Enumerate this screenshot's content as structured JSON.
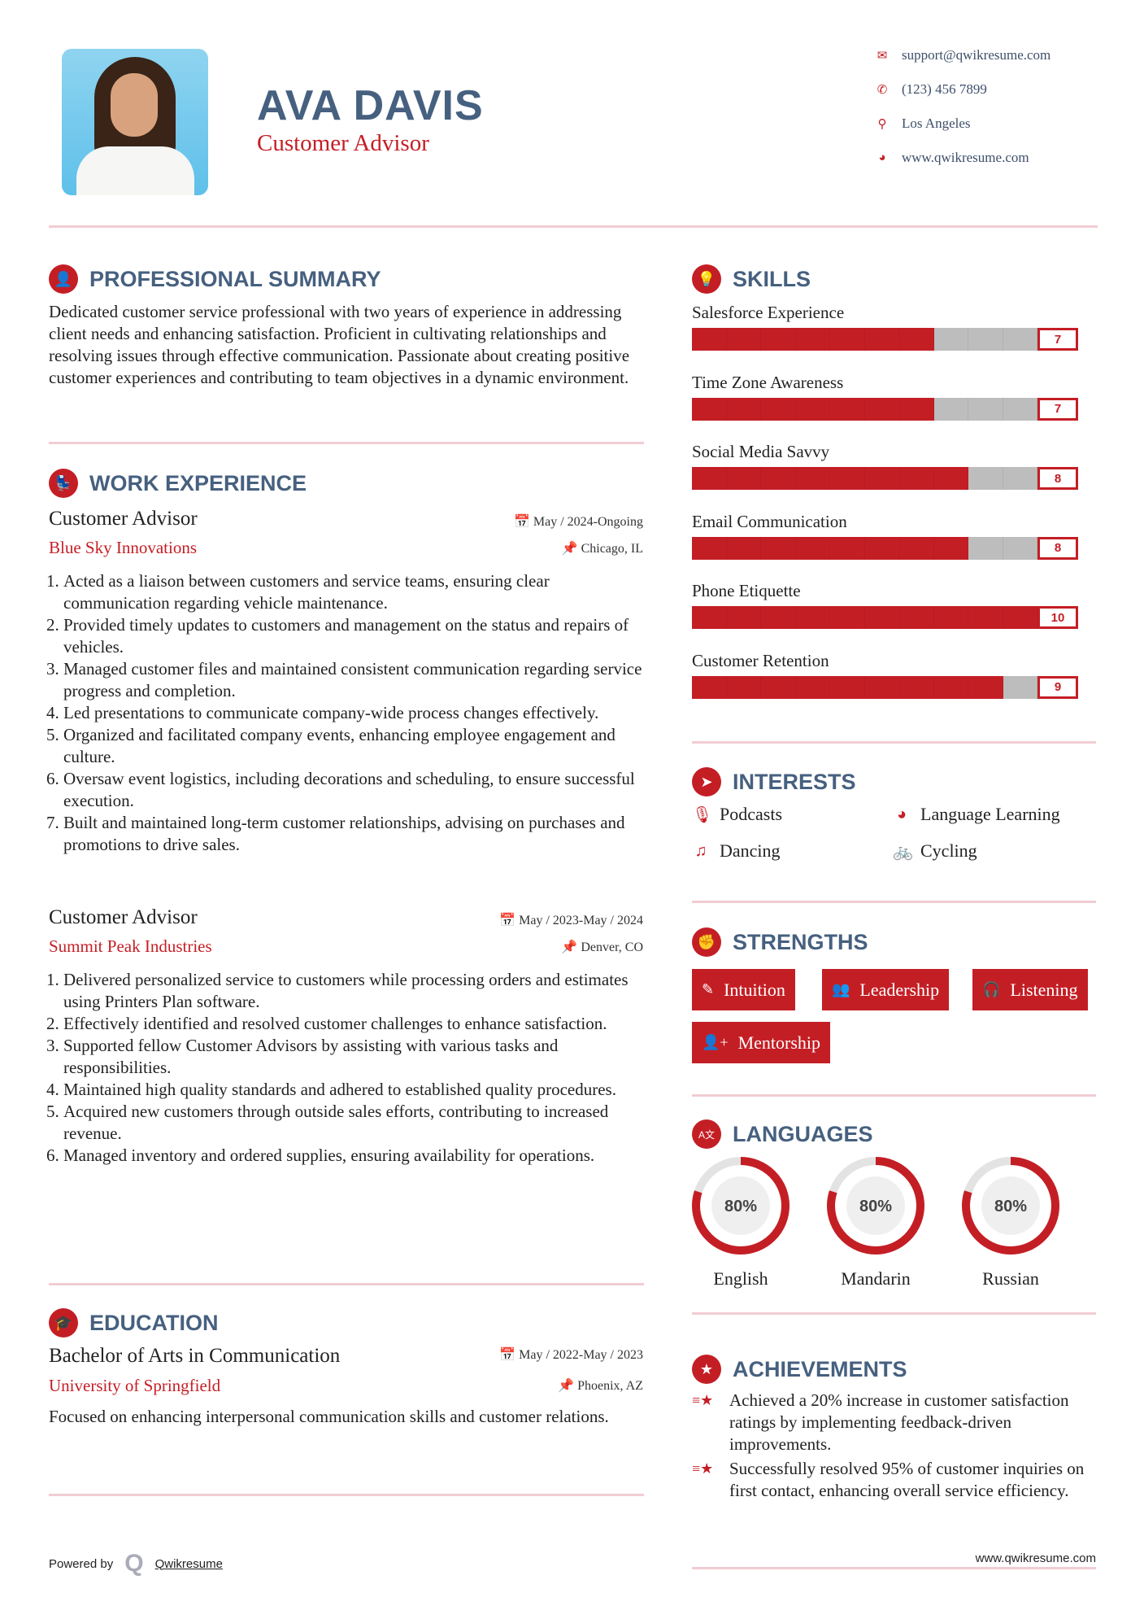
{
  "header": {
    "name": "AVA DAVIS",
    "title": "Customer Advisor",
    "contacts": [
      {
        "icon": "envelope-icon",
        "glyph": "✉",
        "text": "support@qwikresume.com"
      },
      {
        "icon": "phone-icon",
        "glyph": "✆",
        "text": "(123) 456 7899"
      },
      {
        "icon": "map-pin-icon",
        "glyph": "⚲",
        "text": "Los Angeles"
      },
      {
        "icon": "globe-icon",
        "glyph": "◕",
        "text": "www.qwikresume.com"
      }
    ]
  },
  "summary": {
    "heading": "PROFESSIONAL SUMMARY",
    "text": "Dedicated customer service professional with two years of experience in addressing client needs and enhancing satisfaction. Proficient in cultivating relationships and resolving issues through effective communication. Passionate about creating positive customer experiences and contributing to team objectives in a dynamic environment."
  },
  "work": {
    "heading": "WORK EXPERIENCE",
    "jobs": [
      {
        "title": "Customer Advisor",
        "company": "Blue Sky Innovations",
        "date": "May / 2024-Ongoing",
        "location": "Chicago, IL",
        "items": [
          "Acted as a liaison between customers and service teams, ensuring clear communication regarding vehicle maintenance.",
          "Provided timely updates to customers and management on the status and repairs of vehicles.",
          "Managed customer files and maintained consistent communication regarding service progress and completion.",
          "Led presentations to communicate company-wide process changes effectively.",
          "Organized and facilitated company events, enhancing employee engagement and culture.",
          "Oversaw event logistics, including decorations and scheduling, to ensure successful execution.",
          "Built and maintained long-term customer relationships, advising on purchases and promotions to drive sales."
        ]
      },
      {
        "title": "Customer Advisor",
        "company": "Summit Peak Industries",
        "date": "May / 2023-May / 2024",
        "location": "Denver, CO",
        "items": [
          "Delivered personalized service to customers while processing orders and estimates using Printers Plan software.",
          "Effectively identified and resolved customer challenges to enhance satisfaction.",
          "Supported fellow Customer Advisors by assisting with various tasks and responsibilities.",
          "Maintained high quality standards and adhered to established quality procedures.",
          "Acquired new customers through outside sales efforts, contributing to increased revenue.",
          "Managed inventory and ordered supplies, ensuring availability for operations."
        ]
      }
    ]
  },
  "education": {
    "heading": "EDUCATION",
    "degree": "Bachelor of Arts in Communication",
    "school": "University of Springfield",
    "date": "May / 2022-May / 2023",
    "location": "Phoenix, AZ",
    "text": "Focused on enhancing interpersonal communication skills and customer relations."
  },
  "skills": {
    "heading": "SKILLS",
    "max": 10,
    "items": [
      {
        "label": "Salesforce Experience",
        "value": 7
      },
      {
        "label": "Time Zone Awareness",
        "value": 7
      },
      {
        "label": "Social Media Savvy",
        "value": 8
      },
      {
        "label": "Email Communication",
        "value": 8
      },
      {
        "label": "Phone Etiquette",
        "value": 10
      },
      {
        "label": "Customer Retention",
        "value": 9
      }
    ]
  },
  "interests": {
    "heading": "INTERESTS",
    "items": [
      {
        "icon": "microphone-icon",
        "glyph": "🎙",
        "label": "Podcasts"
      },
      {
        "icon": "globe-icon",
        "glyph": "◕",
        "label": "Language Learning"
      },
      {
        "icon": "music-note-icon",
        "glyph": "♫",
        "label": "Dancing"
      },
      {
        "icon": "bicycle-icon",
        "glyph": "🚲",
        "label": "Cycling"
      }
    ]
  },
  "strengths": {
    "heading": "STRENGTHS",
    "items": [
      {
        "icon": "magic-wand-icon",
        "glyph": "✎",
        "label": "Intuition"
      },
      {
        "icon": "users-icon",
        "glyph": "👥",
        "label": "Leadership"
      },
      {
        "icon": "headphones-icon",
        "glyph": "🎧",
        "label": "Listening"
      },
      {
        "icon": "user-plus-icon",
        "glyph": "👤+",
        "label": "Mentorship"
      }
    ]
  },
  "languages": {
    "heading": "LANGUAGES",
    "items": [
      {
        "label": "English",
        "percent": 80,
        "text": "80%"
      },
      {
        "label": "Mandarin",
        "percent": 80,
        "text": "80%"
      },
      {
        "label": "Russian",
        "percent": 80,
        "text": "80%"
      }
    ]
  },
  "achievements": {
    "heading": "ACHIEVEMENTS",
    "items": [
      "Achieved a 20% increase in customer satisfaction ratings by implementing feedback-driven improvements.",
      "Successfully resolved 95% of customer inquiries on first contact, enhancing overall service efficiency."
    ]
  },
  "footer": {
    "powered_by": "Powered by",
    "brand": "Qwikresume",
    "url": "www.qwikresume.com"
  },
  "colors": {
    "accent": "#c41e25",
    "heading": "#46607f",
    "divider": "#f1cdd3",
    "track": "#bdbdbd"
  }
}
